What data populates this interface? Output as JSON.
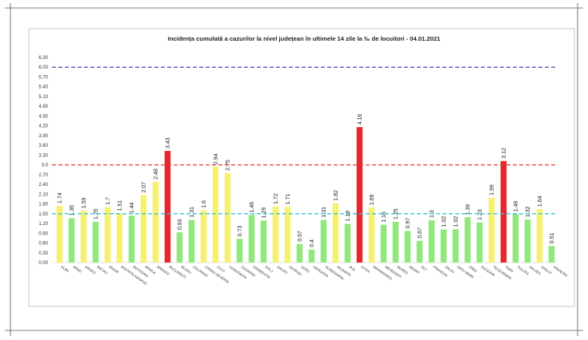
{
  "chart_data": {
    "type": "bar",
    "title": "Incidența cumulată a cazurilor la nivel județean în ultimele 14 zile la ‰ de locuitori - 04.01.2021",
    "categories": [
      "ALBA",
      "ARAD",
      "ARGES",
      "BACAU",
      "BIHOR",
      "BISTRITA-NASAUD",
      "BOTOSANI",
      "BRAILA",
      "BRASOV",
      "BUCURESTI",
      "BUZAU",
      "CALARASI",
      "CARAS-SEVERIN",
      "CLUJ",
      "CONSTANTA",
      "COVASNA",
      "DAMBOVITA",
      "DOLJ",
      "GALATI",
      "GIURGIU",
      "GORJ",
      "HARGHITA",
      "HUNEDOARA",
      "IALOMITA",
      "IASI",
      "ILFOV",
      "MARAMURES",
      "MEHEDINTI",
      "MURES",
      "NEAMT",
      "OLT",
      "PRAHOVA",
      "SALAJ",
      "SATU MARE",
      "SIBIU",
      "SUCEAVA",
      "TELEORMAN",
      "TIMIS",
      "TULCEA",
      "VALCEA",
      "VASLUI",
      "VRANCEA"
    ],
    "values": [
      1.74,
      1.36,
      1.59,
      1.25,
      1.7,
      1.51,
      1.44,
      2.07,
      2.48,
      3.43,
      0.93,
      1.31,
      1.6,
      2.94,
      2.75,
      0.73,
      1.46,
      1.29,
      1.72,
      1.71,
      0.57,
      0.4,
      1.31,
      1.82,
      1.19,
      4.16,
      1.69,
      1.16,
      1.25,
      0.97,
      0.67,
      1.3,
      1.02,
      1.02,
      1.39,
      1.23,
      1.99,
      3.12,
      1.49,
      1.32,
      1.64,
      0.51
    ],
    "value_labels": [
      "1.74",
      "1.36",
      "1.59",
      "1.25",
      "1.7",
      "1.51",
      "1.44",
      "2.07",
      "2.48",
      "3.43",
      "0.93",
      "1.31",
      "1.6",
      "2.94",
      "2.75",
      "0.73",
      "1.46",
      "1.29",
      "1.72",
      "1.71",
      "0.57",
      "0.4",
      "1.31",
      "1.82",
      "1.19",
      "4.16",
      "1.69",
      "1.16",
      "1.25",
      "0.97",
      "0.67",
      "1.3",
      "1.02",
      "1.02",
      "1.39",
      "1.23",
      "1.99",
      "3.12",
      "1.49",
      "1.32",
      "1.64",
      "0.51"
    ],
    "ylim": [
      0,
      6.3
    ],
    "yticks": [
      "0.00",
      "0.30",
      "0.60",
      "0.90",
      "1.20",
      "1.50",
      "1.80",
      "2.10",
      "2.40",
      "2.70",
      "3.0",
      "3.30",
      "3.60",
      "3.90",
      "4.20",
      "4.50",
      "4.80",
      "5.10",
      "5.40",
      "5.70",
      "6.00",
      "6.30"
    ],
    "thresholds": [
      {
        "value": 6.0,
        "color": "#5b3fb0"
      },
      {
        "value": 3.0,
        "color": "#e33a2f"
      },
      {
        "value": 1.5,
        "color": "#30c4de"
      }
    ],
    "colors": {
      "green": "#8fe87a",
      "yellow": "#f7f26e",
      "red": "#e3292b"
    },
    "grid": false,
    "xlabel": "",
    "ylabel": ""
  }
}
